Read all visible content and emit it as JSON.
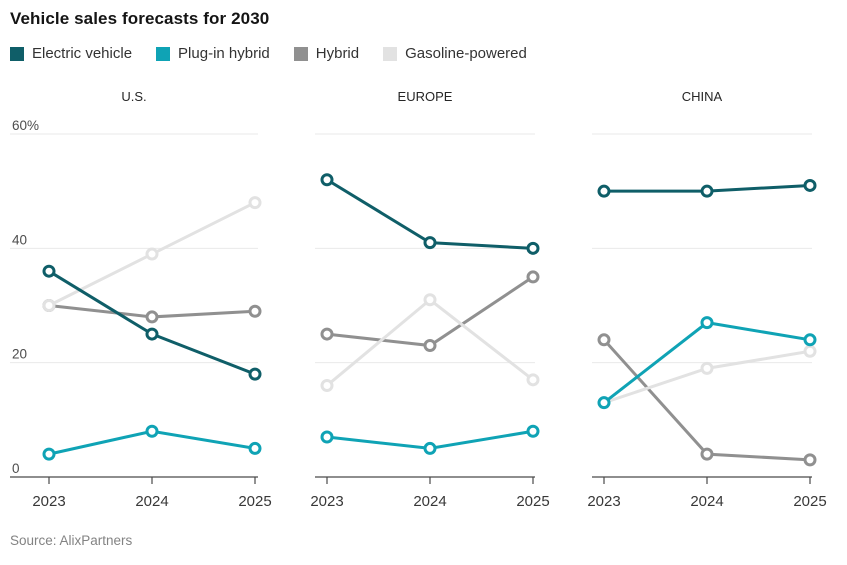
{
  "source": "Source: AlixPartners",
  "chart_data": {
    "type": "line",
    "title": "Vehicle sales forecasts for 2030",
    "x_labels": [
      "2023",
      "2024",
      "2025"
    ],
    "ylim": [
      0,
      60
    ],
    "yticks": [
      0,
      20,
      40,
      60
    ],
    "ytick_labels": [
      "0",
      "20",
      "40",
      "60%"
    ],
    "grid": "horizontal",
    "legend_position": "top",
    "marker": "open-circle",
    "panels": [
      {
        "title": "U.S.",
        "series": [
          {
            "name": "Electric vehicle",
            "color": "#0f5e68",
            "values": [
              36,
              25,
              18
            ]
          },
          {
            "name": "Plug-in hybrid",
            "color": "#0fa3b5",
            "values": [
              4,
              8,
              5
            ]
          },
          {
            "name": "Hybrid",
            "color": "#909090",
            "values": [
              30,
              28,
              29
            ]
          },
          {
            "name": "Gasoline-powered",
            "color": "#e2e2e2",
            "values": [
              30,
              39,
              48
            ]
          }
        ]
      },
      {
        "title": "EUROPE",
        "series": [
          {
            "name": "Electric vehicle",
            "color": "#0f5e68",
            "values": [
              52,
              41,
              40
            ]
          },
          {
            "name": "Plug-in hybrid",
            "color": "#0fa3b5",
            "values": [
              7,
              5,
              8
            ]
          },
          {
            "name": "Hybrid",
            "color": "#909090",
            "values": [
              25,
              23,
              35
            ]
          },
          {
            "name": "Gasoline-powered",
            "color": "#e2e2e2",
            "values": [
              16,
              31,
              17
            ]
          }
        ]
      },
      {
        "title": "CHINA",
        "series": [
          {
            "name": "Electric vehicle",
            "color": "#0f5e68",
            "values": [
              50,
              50,
              51
            ]
          },
          {
            "name": "Plug-in hybrid",
            "color": "#0fa3b5",
            "values": [
              13,
              27,
              24
            ]
          },
          {
            "name": "Hybrid",
            "color": "#909090",
            "values": [
              24,
              4,
              3
            ]
          },
          {
            "name": "Gasoline-powered",
            "color": "#e2e2e2",
            "values": [
              13,
              19,
              22
            ]
          }
        ]
      }
    ]
  }
}
